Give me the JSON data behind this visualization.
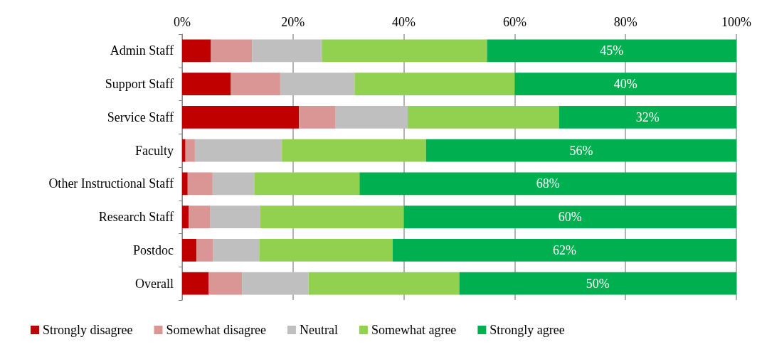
{
  "chart_data": {
    "type": "bar",
    "orientation": "horizontal",
    "stacked": true,
    "categories": [
      "Admin Staff",
      "Support Staff",
      "Service Staff",
      "Faculty",
      "Other Instructional Staff",
      "Research Staff",
      "Postdoc",
      "Overall"
    ],
    "series": [
      {
        "name": "Strongly disagree",
        "color": "#c00000",
        "values": [
          5.2,
          8.8,
          21.1,
          0.6,
          1.0,
          1.2,
          2.6,
          4.8
        ]
      },
      {
        "name": "Somewhat disagree",
        "color": "#da9694",
        "values": [
          7.4,
          8.9,
          6.5,
          1.7,
          4.5,
          3.9,
          3.0,
          6.0
        ]
      },
      {
        "name": "Neutral",
        "color": "#bfbfbf",
        "values": [
          12.6,
          13.4,
          13.1,
          15.7,
          7.5,
          9.0,
          8.3,
          12.0
        ]
      },
      {
        "name": "Somewhat agree",
        "color": "#92d050",
        "values": [
          29.8,
          28.9,
          27.3,
          26.0,
          19.0,
          25.9,
          24.1,
          27.2
        ]
      },
      {
        "name": "Strongly agree",
        "color": "#00b050",
        "values": [
          45,
          40,
          32,
          56,
          68,
          60,
          62,
          50
        ],
        "value_labels": [
          "45%",
          "40%",
          "32%",
          "56%",
          "68%",
          "60%",
          "62%",
          "50%"
        ]
      }
    ],
    "xlim": [
      0,
      100
    ],
    "xticks": [
      {
        "value": 0,
        "label": "0%"
      },
      {
        "value": 20,
        "label": "20%"
      },
      {
        "value": 40,
        "label": "40%"
      },
      {
        "value": 60,
        "label": "60%"
      },
      {
        "value": 80,
        "label": "80%"
      },
      {
        "value": 100,
        "label": "100%"
      }
    ],
    "grid": "x",
    "legend": "bottom"
  }
}
